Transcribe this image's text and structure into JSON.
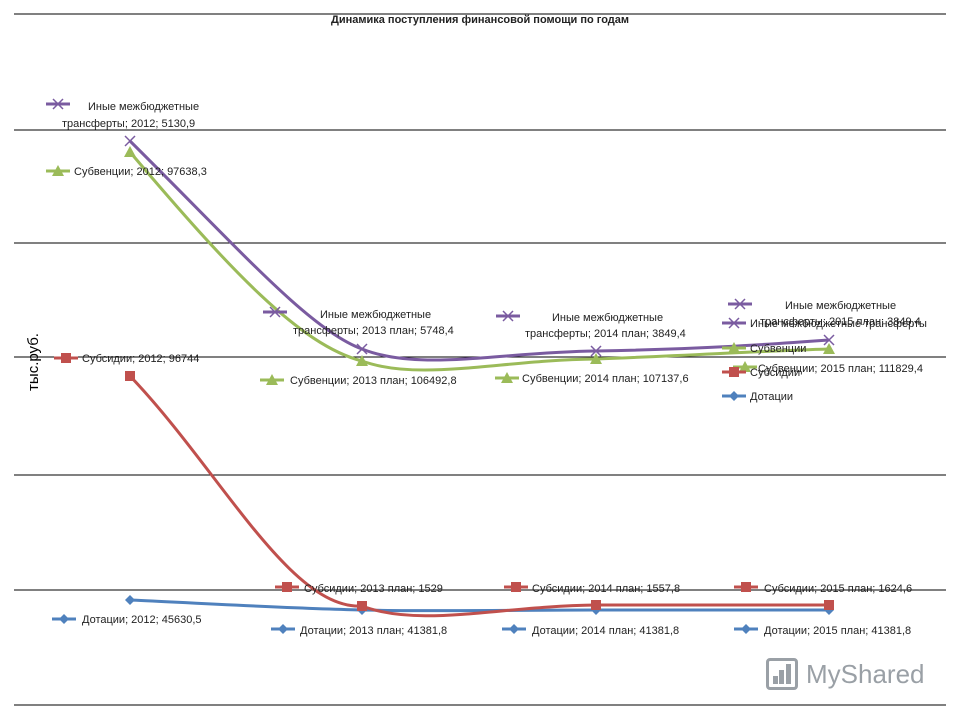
{
  "chart_data": {
    "type": "line",
    "title": "Динамика поступления финансовой помощи по годам",
    "ylabel": "тыс.руб.",
    "categories": [
      "2012",
      "2013 план",
      "2014 план",
      "2015 план"
    ],
    "legend_position": "right",
    "grid": true,
    "series": [
      {
        "name": "Иные межбюджетные трансферты",
        "color": "#7a5ba0",
        "marker": "x",
        "values": [
          5130.9,
          5748.4,
          3849.4,
          3849.4
        ],
        "data_labels": [
          "Иные межбюджетные трансферты; 2012; 5130,9",
          "Иные межбюджетные трансферты; 2013 план; 5748,4",
          "Иные межбюджетные трансферты; 2014 план; 3849,4",
          "Иные межбюджетные трансферты; 2015 план; 3849,4"
        ]
      },
      {
        "name": "Субвенции",
        "color": "#9bbb59",
        "marker": "triangle",
        "values": [
          97638.3,
          106492.8,
          107137.6,
          111829.4
        ],
        "data_labels": [
          "Субвенции; 2012; 97638,3",
          "Субвенции; 2013 план; 106492,8",
          "Субвенции; 2014 план; 107137,6",
          "Субвенции; 2015 план; 111829,4"
        ]
      },
      {
        "name": "Субсидии",
        "color": "#c0504d",
        "marker": "square",
        "values": [
          96744,
          1529,
          1557.8,
          1624.6
        ],
        "data_labels": [
          "Субсидии; 2012; 96744",
          "Субсидии; 2013 план; 1529",
          "Субсидии; 2014 план; 1557,8",
          "Субсидии; 2015 план; 1624,6"
        ]
      },
      {
        "name": "Дотации",
        "color": "#4f81bd",
        "marker": "diamond",
        "values": [
          45630.5,
          41381.8,
          41381.8,
          41381.8
        ],
        "data_labels": [
          "Дотации; 2012; 45630,5",
          "Дотации; 2013 план; 41381,8",
          "Дотации; 2014 план; 41381,8",
          "Дотации; 2015 план; 41381,8"
        ]
      }
    ]
  },
  "watermark": "MyShared"
}
